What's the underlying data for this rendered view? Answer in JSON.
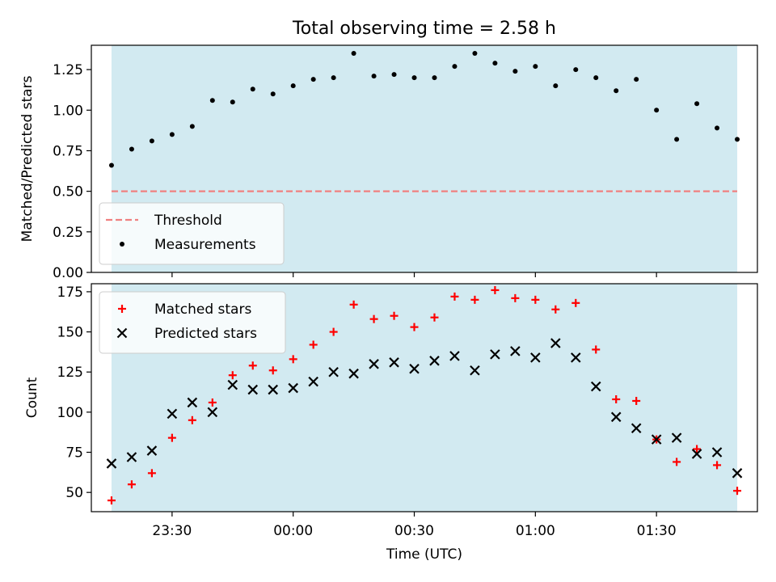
{
  "figure": {
    "title": "Total observing time = 2.58 h"
  },
  "chart_data": [
    {
      "type": "scatter",
      "title": "Total observing time = 2.58 h",
      "xlabel": "",
      "ylabel": "Matched/Predicted stars",
      "ylim": [
        0,
        1.4
      ],
      "yticks": [
        0.0,
        0.25,
        0.5,
        0.75,
        1.0,
        1.25
      ],
      "ytick_labels": [
        "0.00",
        "0.25",
        "0.50",
        "0.75",
        "1.00",
        "1.25"
      ],
      "grid": false,
      "legend_position": "lower-left",
      "shaded_region_color": "#add8e6",
      "threshold": {
        "name": "Threshold",
        "value": 0.5,
        "color": "#f08080",
        "style": "dashed"
      },
      "series": [
        {
          "name": "Measurements",
          "marker": "dot",
          "color": "#000000",
          "x": [
            "23:15",
            "23:20",
            "23:25",
            "23:30",
            "23:35",
            "23:40",
            "23:45",
            "23:50",
            "23:55",
            "00:00",
            "00:05",
            "00:10",
            "00:15",
            "00:20",
            "00:25",
            "00:30",
            "00:35",
            "00:40",
            "00:45",
            "00:50",
            "00:55",
            "01:00",
            "01:05",
            "01:10",
            "01:15",
            "01:20",
            "01:25",
            "01:30",
            "01:35",
            "01:40",
            "01:45",
            "01:50"
          ],
          "y": [
            0.66,
            0.76,
            0.81,
            0.85,
            0.9,
            1.06,
            1.05,
            1.13,
            1.1,
            1.15,
            1.19,
            1.2,
            1.35,
            1.21,
            1.22,
            1.2,
            1.2,
            1.27,
            1.35,
            1.29,
            1.24,
            1.27,
            1.15,
            1.25,
            1.2,
            1.12,
            1.19,
            1.0,
            0.82,
            1.04,
            0.89,
            0.82
          ]
        }
      ]
    },
    {
      "type": "scatter",
      "title": "",
      "xlabel": "Time (UTC)",
      "ylabel": "Count",
      "ylim": [
        38,
        180
      ],
      "yticks": [
        50,
        75,
        100,
        125,
        150,
        175
      ],
      "xticks": [
        "23:30",
        "00:00",
        "00:30",
        "01:00",
        "01:30"
      ],
      "xlim": [
        "23:10",
        "01:55"
      ],
      "grid": false,
      "legend_position": "top-left",
      "shaded_region_color": "#add8e6",
      "series": [
        {
          "name": "Matched stars",
          "marker": "plus",
          "color": "#ff0000",
          "x": [
            "23:15",
            "23:20",
            "23:25",
            "23:30",
            "23:35",
            "23:40",
            "23:45",
            "23:50",
            "23:55",
            "00:00",
            "00:05",
            "00:10",
            "00:15",
            "00:20",
            "00:25",
            "00:30",
            "00:35",
            "00:40",
            "00:45",
            "00:50",
            "00:55",
            "01:00",
            "01:05",
            "01:10",
            "01:15",
            "01:20",
            "01:25",
            "01:30",
            "01:35",
            "01:40",
            "01:45",
            "01:50"
          ],
          "y": [
            45,
            55,
            62,
            84,
            95,
            106,
            123,
            129,
            126,
            133,
            142,
            150,
            167,
            158,
            160,
            153,
            159,
            172,
            170,
            176,
            171,
            170,
            164,
            168,
            139,
            108,
            107,
            83,
            69,
            77,
            67,
            51
          ]
        },
        {
          "name": "Predicted stars",
          "marker": "x",
          "color": "#000000",
          "x": [
            "23:15",
            "23:20",
            "23:25",
            "23:30",
            "23:35",
            "23:40",
            "23:45",
            "23:50",
            "23:55",
            "00:00",
            "00:05",
            "00:10",
            "00:15",
            "00:20",
            "00:25",
            "00:30",
            "00:35",
            "00:40",
            "00:45",
            "00:50",
            "00:55",
            "01:00",
            "01:05",
            "01:10",
            "01:15",
            "01:20",
            "01:25",
            "01:30",
            "01:35",
            "01:40",
            "01:45",
            "01:50"
          ],
          "y": [
            68,
            72,
            76,
            99,
            106,
            100,
            117,
            114,
            114,
            115,
            119,
            125,
            124,
            130,
            131,
            127,
            132,
            135,
            126,
            136,
            138,
            134,
            143,
            134,
            116,
            97,
            90,
            83,
            84,
            74,
            75,
            62
          ]
        }
      ]
    }
  ]
}
